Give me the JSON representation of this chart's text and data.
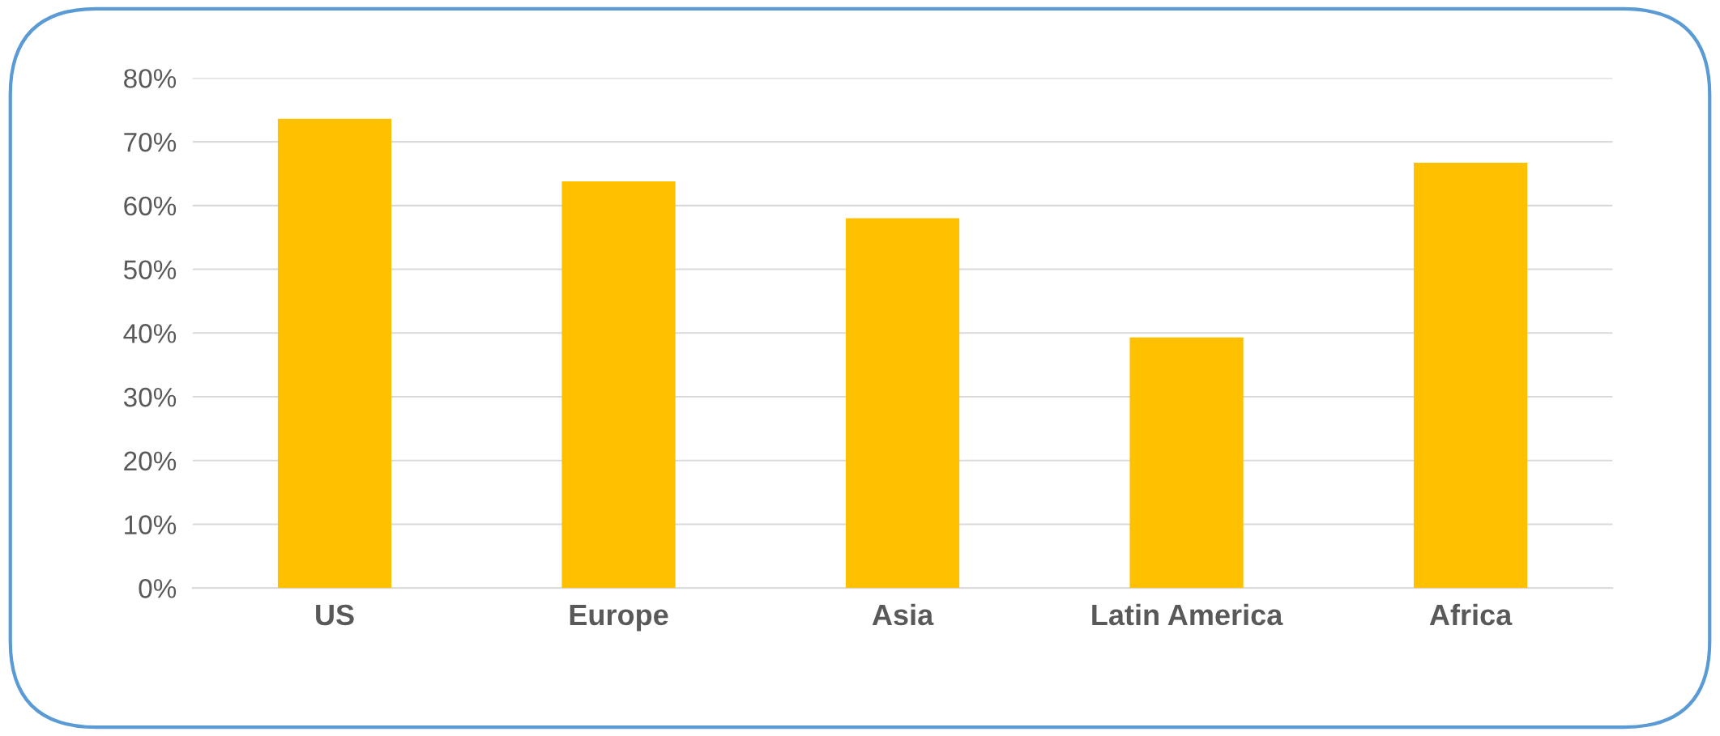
{
  "chart_data": {
    "type": "bar",
    "categories": [
      "US",
      "Europe",
      "Asia",
      "Latin America",
      "Africa"
    ],
    "values": [
      73.6,
      63.8,
      58.0,
      39.3,
      66.7
    ],
    "color": "#ffc000",
    "ylim": [
      0,
      80
    ],
    "yticks": [
      {
        "value": 0,
        "label": "0%"
      },
      {
        "value": 10,
        "label": "10%"
      },
      {
        "value": 20,
        "label": "20%"
      },
      {
        "value": 30,
        "label": "30%"
      },
      {
        "value": 40,
        "label": "40%"
      },
      {
        "value": 50,
        "label": "50%"
      },
      {
        "value": 60,
        "label": "60%"
      },
      {
        "value": 70,
        "label": "70%"
      },
      {
        "value": 80,
        "label": "80%"
      }
    ],
    "grid": "y",
    "legend": false
  }
}
